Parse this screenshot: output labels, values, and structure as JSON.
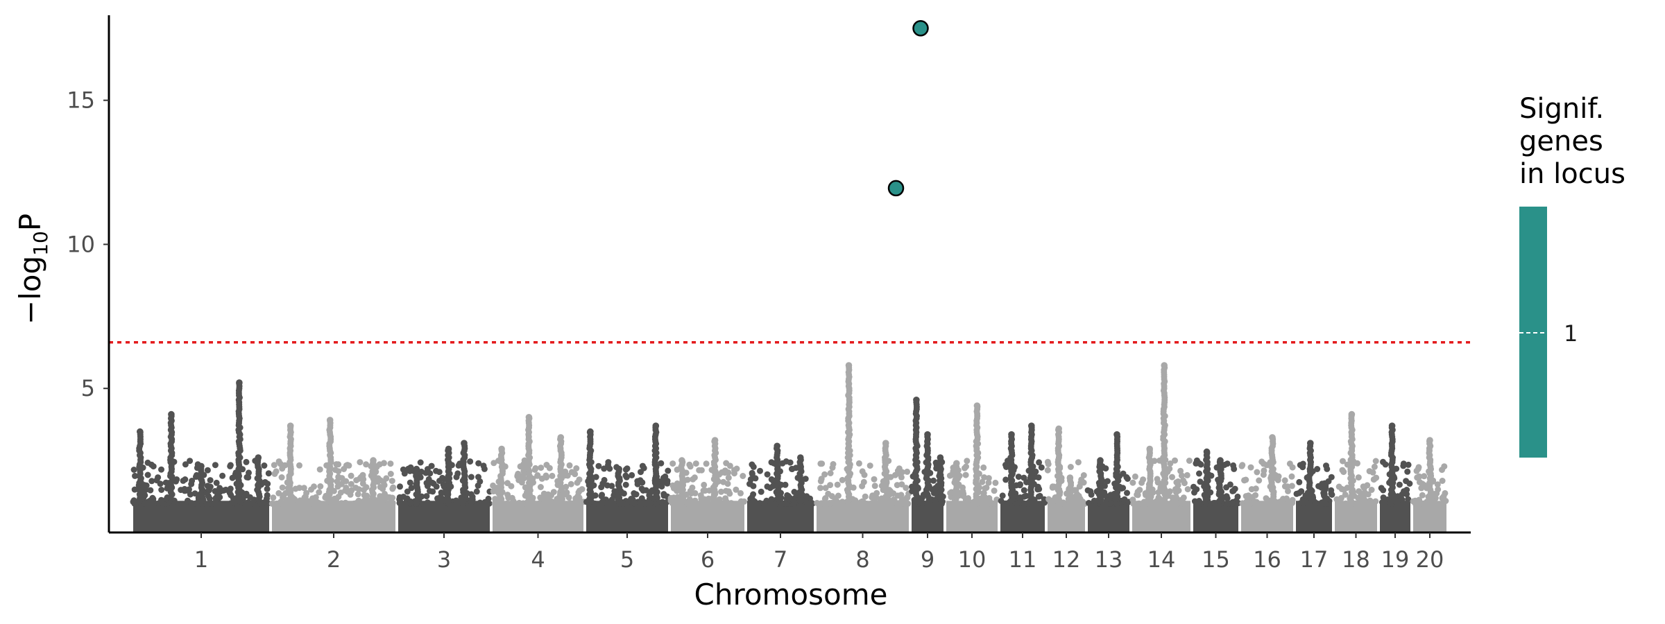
{
  "chart_data": {
    "type": "scatter",
    "subtype": "manhattan",
    "xlabel": "Chromosome",
    "ylabel_main": "−log",
    "ylabel_sub": "10",
    "ylabel_end": "P",
    "ylim": [
      0,
      18
    ],
    "yticks": [
      5,
      10,
      15
    ],
    "grid": false,
    "threshold": {
      "y": 6.6,
      "color": "#e31a1c",
      "style": "dotted"
    },
    "colors": {
      "dark": "#525252",
      "light": "#a8a8a8",
      "significant": "#2a9189"
    },
    "chromosomes": [
      {
        "label": "1",
        "peaks": [
          [
            0.05,
            3.5
          ],
          [
            0.28,
            4.1
          ],
          [
            0.5,
            2.3
          ],
          [
            0.78,
            5.2
          ],
          [
            0.92,
            2.6
          ]
        ]
      },
      {
        "label": "2",
        "peaks": [
          [
            0.15,
            3.7
          ],
          [
            0.47,
            3.9
          ],
          [
            0.82,
            2.5
          ]
        ]
      },
      {
        "label": "3",
        "peaks": [
          [
            0.2,
            2.2
          ],
          [
            0.55,
            2.9
          ],
          [
            0.72,
            3.1
          ]
        ]
      },
      {
        "label": "4",
        "peaks": [
          [
            0.1,
            2.9
          ],
          [
            0.4,
            4.0
          ],
          [
            0.75,
            3.3
          ]
        ]
      },
      {
        "label": "5",
        "peaks": [
          [
            0.05,
            3.5
          ],
          [
            0.4,
            2.2
          ],
          [
            0.85,
            3.7
          ]
        ]
      },
      {
        "label": "6",
        "peaks": [
          [
            0.15,
            2.5
          ],
          [
            0.6,
            3.2
          ]
        ]
      },
      {
        "label": "7",
        "peaks": [
          [
            0.45,
            3.0
          ],
          [
            0.8,
            2.6
          ]
        ]
      },
      {
        "label": "8",
        "peaks": [
          [
            0.35,
            5.8
          ],
          [
            0.75,
            3.1
          ]
        ]
      },
      {
        "label": "9",
        "peaks": [
          [
            0.15,
            4.6
          ],
          [
            0.5,
            3.4
          ],
          [
            0.9,
            2.6
          ]
        ]
      },
      {
        "label": "10",
        "peaks": [
          [
            0.2,
            2.4
          ],
          [
            0.6,
            4.4
          ]
        ]
      },
      {
        "label": "11",
        "peaks": [
          [
            0.25,
            3.4
          ],
          [
            0.7,
            3.7
          ]
        ]
      },
      {
        "label": "12",
        "peaks": [
          [
            0.3,
            3.6
          ],
          [
            0.6,
            1.9
          ]
        ]
      },
      {
        "label": "13",
        "peaks": [
          [
            0.3,
            2.5
          ],
          [
            0.7,
            3.4
          ]
        ]
      },
      {
        "label": "14",
        "peaks": [
          [
            0.3,
            2.9
          ],
          [
            0.55,
            5.8
          ]
        ]
      },
      {
        "label": "15",
        "peaks": [
          [
            0.3,
            2.8
          ],
          [
            0.6,
            2.5
          ]
        ]
      },
      {
        "label": "16",
        "peaks": [
          [
            0.6,
            3.3
          ]
        ]
      },
      {
        "label": "17",
        "peaks": [
          [
            0.4,
            3.1
          ],
          [
            0.8,
            1.7
          ]
        ]
      },
      {
        "label": "18",
        "peaks": [
          [
            0.4,
            4.1
          ]
        ]
      },
      {
        "label": "19",
        "peaks": [
          [
            0.4,
            3.7
          ]
        ]
      },
      {
        "label": "20",
        "peaks": [
          [
            0.5,
            3.2
          ]
        ]
      }
    ],
    "significant_points": [
      {
        "chrom": "8",
        "pos": 0.85,
        "y": 11.95,
        "genes": 1
      },
      {
        "chrom": "9",
        "pos": 0.3,
        "y": 17.5,
        "genes": 1
      }
    ],
    "legend": {
      "title_lines": [
        "Signif.",
        "genes",
        "in locus"
      ],
      "label": "1",
      "color": "#2a9189",
      "placement": "right"
    }
  }
}
